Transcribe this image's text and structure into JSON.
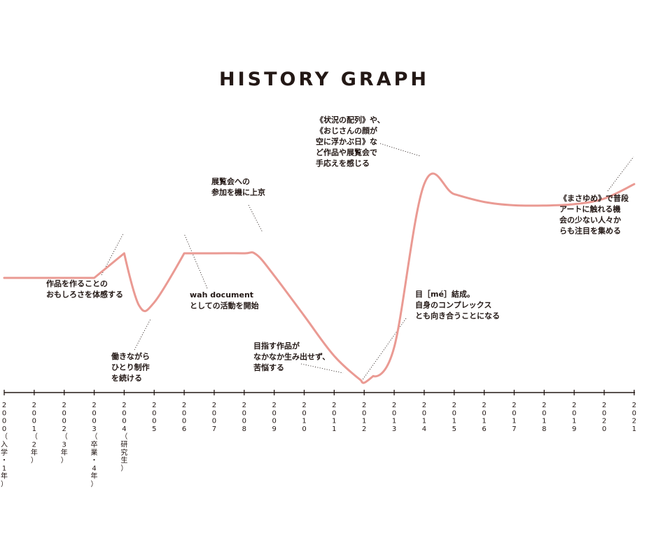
{
  "chart_data": {
    "type": "line",
    "title": "HISTORY GRAPH",
    "xlabel": "",
    "ylabel": "",
    "grid": false,
    "x_ticks": [
      {
        "year": [
          "2",
          "0",
          "0",
          "0"
        ],
        "note": [
          "（",
          "入",
          "学",
          "・",
          "1",
          "年",
          "）"
        ]
      },
      {
        "year": [
          "2",
          "0",
          "0",
          "1"
        ],
        "note": [
          "（",
          "2",
          "年",
          "）"
        ]
      },
      {
        "year": [
          "2",
          "0",
          "0",
          "2"
        ],
        "note": [
          "（",
          "3",
          "年",
          "）"
        ]
      },
      {
        "year": [
          "2",
          "0",
          "0",
          "3"
        ],
        "note": [
          "（",
          "卒",
          "業",
          "・",
          "4",
          "年",
          "）"
        ]
      },
      {
        "year": [
          "2",
          "0",
          "0",
          "4"
        ],
        "note": [
          "（",
          "研",
          "究",
          "生",
          "）"
        ]
      },
      {
        "year": [
          "2",
          "0",
          "0",
          "5"
        ],
        "note": []
      },
      {
        "year": [
          "2",
          "0",
          "0",
          "6"
        ],
        "note": []
      },
      {
        "year": [
          "2",
          "0",
          "0",
          "7"
        ],
        "note": []
      },
      {
        "year": [
          "2",
          "0",
          "0",
          "8"
        ],
        "note": []
      },
      {
        "year": [
          "2",
          "0",
          "0",
          "9"
        ],
        "note": []
      },
      {
        "year": [
          "2",
          "0",
          "1",
          "0"
        ],
        "note": []
      },
      {
        "year": [
          "2",
          "0",
          "1",
          "1"
        ],
        "note": []
      },
      {
        "year": [
          "2",
          "0",
          "1",
          "2"
        ],
        "note": []
      },
      {
        "year": [
          "2",
          "0",
          "1",
          "3"
        ],
        "note": []
      },
      {
        "year": [
          "2",
          "0",
          "1",
          "4"
        ],
        "note": []
      },
      {
        "year": [
          "2",
          "0",
          "1",
          "5"
        ],
        "note": []
      },
      {
        "year": [
          "2",
          "0",
          "1",
          "6"
        ],
        "note": []
      },
      {
        "year": [
          "2",
          "0",
          "1",
          "7"
        ],
        "note": []
      },
      {
        "year": [
          "2",
          "0",
          "1",
          "8"
        ],
        "note": []
      },
      {
        "year": [
          "2",
          "0",
          "1",
          "9"
        ],
        "note": []
      },
      {
        "year": [
          "2",
          "0",
          "2",
          "0"
        ],
        "note": []
      },
      {
        "year": [
          "2",
          "0",
          "2",
          "1"
        ],
        "note": []
      }
    ],
    "xlim": [
      2000,
      2021
    ],
    "ylim": [
      0,
      100
    ],
    "series": [
      {
        "color": "#ea9a93",
        "x": [
          2000,
          2003,
          2004,
          2004.5,
          2005,
          2006,
          2007,
          2008,
          2008.4,
          2009,
          2010,
          2011,
          2011.9,
          2012,
          2012.3,
          2013,
          2014,
          2015,
          2016,
          2017,
          2018,
          2019,
          2020,
          2021
        ],
        "y": [
          47,
          47,
          58,
          34.5,
          36,
          58,
          58,
          58,
          57.5,
          48,
          30,
          12,
          1,
          0,
          3,
          16,
          89,
          84.5,
          81,
          79.5,
          79.4,
          80,
          82.5,
          89
        ]
      }
    ],
    "annotations": [
      {
        "lines": [
          "作品を作ることの",
          "おもしろさを体感する"
        ],
        "x": 2003.3,
        "y": 50
      },
      {
        "lines": [
          "働きながら",
          "ひとり制作",
          "を続ける"
        ],
        "x": 2004.2,
        "y": 36
      },
      {
        "lines": [
          "wah document",
          "としての活動を開始"
        ],
        "x": 2006.1,
        "y": 57
      },
      {
        "lines": [
          "展覧会への",
          "参加を機に上京"
        ],
        "x": 2008.6,
        "y": 55
      },
      {
        "lines": [
          "目指す作品が",
          "なかなか生み出せず、",
          "苦悩する"
        ],
        "x": 2011.6,
        "y": 4
      },
      {
        "lines": [
          "目［mé］結成。",
          "自身のコンプレックス",
          "とも向き合うことになる"
        ],
        "x": 2012.1,
        "y": 1
      },
      {
        "lines": [
          "《状況の配列》や、",
          "《おじさんの顔が",
          "空に浮かぶ日》な",
          "ど作品や展覧会で",
          "手応えを感じる"
        ],
        "x": 2014,
        "y": 89
      },
      {
        "lines": [
          "《まさゆめ》で普段",
          "アートに触れる機",
          "会の少ない人々か",
          "らも注目を集める"
        ],
        "x": 2021,
        "y": 89
      }
    ]
  }
}
